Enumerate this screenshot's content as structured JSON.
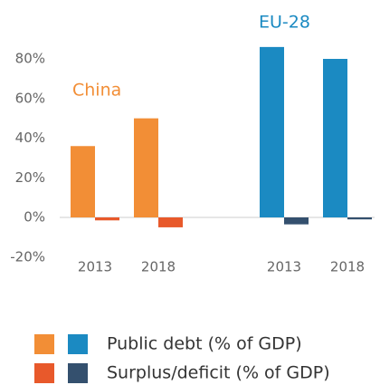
{
  "chart_data": {
    "type": "grouped-bar",
    "groups": [
      {
        "name": "China",
        "color": "#f28e36",
        "categories": [
          "2013",
          "2018"
        ]
      },
      {
        "name": "EU-28",
        "color": "#1b8ac2",
        "categories": [
          "2013",
          "2018"
        ]
      }
    ],
    "series": [
      {
        "name": "Public debt (% of GDP)",
        "colors": [
          "#f28e36",
          "#1b8ac2"
        ],
        "values": [
          [
            36,
            50
          ],
          [
            86,
            80
          ]
        ]
      },
      {
        "name": "Surplus/deficit (% of GDP)",
        "colors": [
          "#e8592b",
          "#34506e"
        ],
        "values": [
          [
            -1.5,
            -5
          ],
          [
            -3.5,
            -1
          ]
        ]
      }
    ],
    "ylim": [
      -20,
      90
    ],
    "yticks": [
      {
        "value": -20,
        "label": "-20%"
      },
      {
        "value": 0,
        "label": "0%"
      },
      {
        "value": 20,
        "label": "20%"
      },
      {
        "value": 40,
        "label": "40%"
      },
      {
        "value": 60,
        "label": "60%"
      },
      {
        "value": 80,
        "label": "80%"
      }
    ]
  }
}
